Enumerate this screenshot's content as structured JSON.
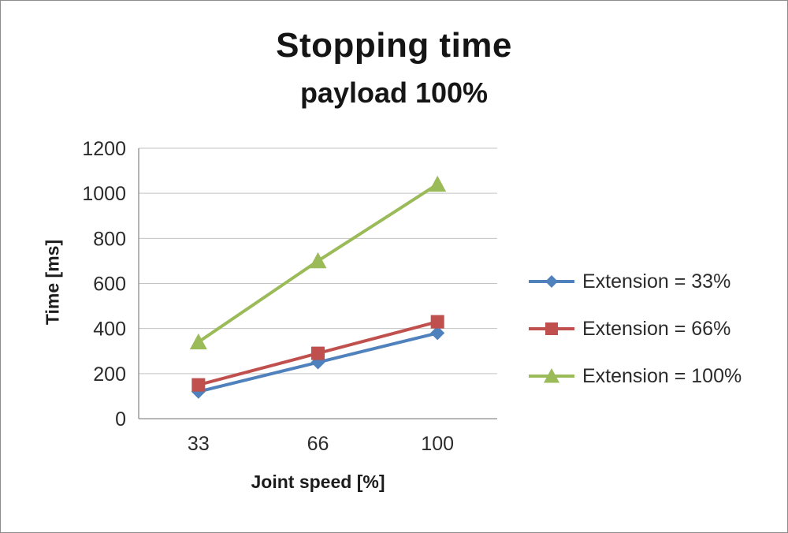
{
  "chart_data": {
    "type": "line",
    "title": "Stopping time",
    "subtitle": "payload 100%",
    "xlabel": "Joint speed [%]",
    "ylabel": "Time [ms]",
    "categories": [
      "33",
      "66",
      "100"
    ],
    "ylim": [
      0,
      1200
    ],
    "ytick_step": 200,
    "grid": true,
    "legend_position": "right",
    "series": [
      {
        "name": "Extension = 33%",
        "values": [
          120,
          250,
          380
        ],
        "color": "#4F81BD",
        "marker": "diamond"
      },
      {
        "name": "Extension = 66%",
        "values": [
          150,
          290,
          430
        ],
        "color": "#C0504D",
        "marker": "square"
      },
      {
        "name": "Extension = 100%",
        "values": [
          340,
          700,
          1040
        ],
        "color": "#9BBB59",
        "marker": "triangle"
      }
    ],
    "colors": {
      "gridline": "#c3c3c3",
      "axis": "#8c8c8c",
      "tick_text": "#2b2b2b"
    }
  }
}
